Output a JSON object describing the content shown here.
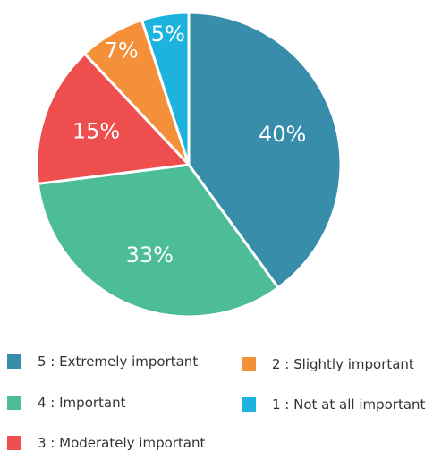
{
  "chart_data": {
    "type": "pie",
    "title": "",
    "start_angle_deg": 0,
    "direction": "clockwise",
    "slices": [
      {
        "label": "5 : Extremely important",
        "value": 40,
        "display": "40%",
        "color": "#378DAA"
      },
      {
        "label": "4 :  Important",
        "value": 33,
        "display": "33%",
        "color": "#4DBD98"
      },
      {
        "label": "3 : Moderately important",
        "value": 15,
        "display": "15%",
        "color": "#EF4E4E"
      },
      {
        "label": "2 : Slightly important",
        "value": 7,
        "display": "7%",
        "color": "#F48F3A"
      },
      {
        "label": "1 : Not at all important",
        "value": 5,
        "display": "5%",
        "color": "#1CB3DE"
      }
    ],
    "legend_placement": "bottom"
  }
}
